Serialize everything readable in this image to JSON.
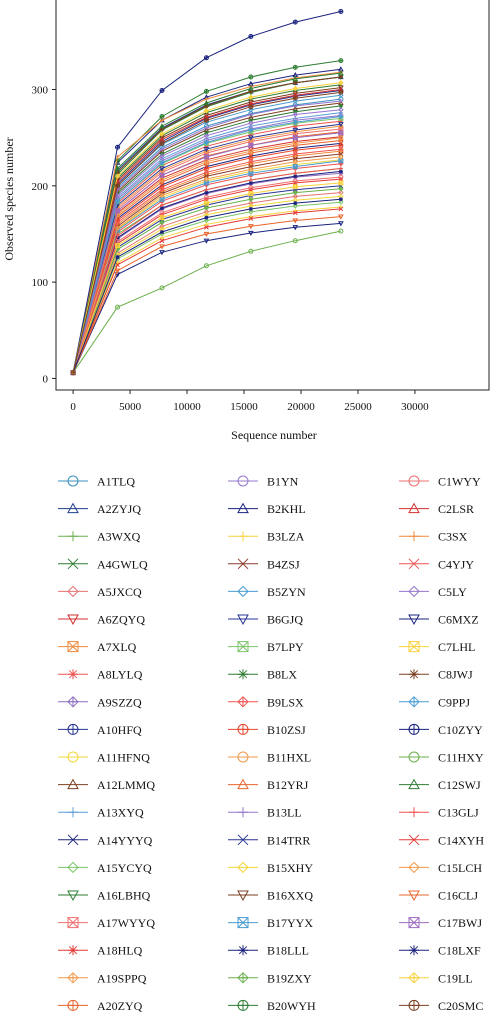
{
  "chart_data": {
    "type": "line",
    "title": "",
    "xlabel": "Sequence number",
    "ylabel": "Observed species number",
    "xlim": [
      -1500,
      36500
    ],
    "ylim": [
      -12,
      395
    ],
    "xticks": [
      0,
      5000,
      10000,
      15000,
      20000,
      25000,
      30000
    ],
    "yticks": [
      0,
      100,
      200,
      300
    ],
    "x": [
      0,
      3900,
      7800,
      11700,
      15600,
      19500,
      23500
    ],
    "legend_placement": "below",
    "legend_columns": 3,
    "series": [
      {
        "name": "A1TLQ",
        "color": "#3a8fc0",
        "marker": "circle",
        "values": [
          6,
          198,
          240,
          262,
          275,
          284,
          290
        ]
      },
      {
        "name": "A2ZYJQ",
        "color": "#1f3f8c",
        "marker": "triangle",
        "values": [
          6,
          216,
          260,
          284,
          298,
          307,
          313
        ]
      },
      {
        "name": "A3WXQ",
        "color": "#6ab04c",
        "marker": "plus",
        "values": [
          6,
          150,
          180,
          196,
          206,
          213,
          218
        ]
      },
      {
        "name": "A4GWLQ",
        "color": "#2e7d32",
        "marker": "x",
        "values": [
          6,
          208,
          252,
          276,
          290,
          299,
          305
        ]
      },
      {
        "name": "A5JXCQ",
        "color": "#e57373",
        "marker": "diamond",
        "values": [
          6,
          130,
          158,
          173,
          182,
          189,
          193
        ]
      },
      {
        "name": "A6ZQYQ",
        "color": "#d32f2f",
        "marker": "triangle-down",
        "values": [
          6,
          172,
          208,
          227,
          238,
          246,
          251
        ]
      },
      {
        "name": "A7XLQ",
        "color": "#f08a3c",
        "marker": "square-x",
        "values": [
          6,
          160,
          194,
          212,
          223,
          231,
          236
        ]
      },
      {
        "name": "A8LYLQ",
        "color": "#ef5350",
        "marker": "asterisk",
        "values": [
          6,
          182,
          221,
          241,
          253,
          262,
          267
        ]
      },
      {
        "name": "A9SZZQ",
        "color": "#8e6bbf",
        "marker": "diamond-plus",
        "values": [
          6,
          145,
          176,
          192,
          202,
          209,
          213
        ]
      },
      {
        "name": "A10HFQ",
        "color": "#283593",
        "marker": "circle-plus",
        "values": [
          6,
          202,
          246,
          270,
          284,
          293,
          299
        ]
      },
      {
        "name": "A11HFNQ",
        "color": "#f2d63c",
        "marker": "circle",
        "values": [
          6,
          155,
          188,
          205,
          215,
          222,
          227
        ]
      },
      {
        "name": "A12LMMQ",
        "color": "#7b3f20",
        "marker": "triangle",
        "values": [
          6,
          194,
          236,
          258,
          271,
          280,
          286
        ]
      },
      {
        "name": "A13XYQ",
        "color": "#5d9cd6",
        "marker": "plus",
        "values": [
          6,
          188,
          228,
          249,
          262,
          270,
          276
        ]
      },
      {
        "name": "A14YYYQ",
        "color": "#1a237e",
        "marker": "x",
        "values": [
          6,
          166,
          201,
          220,
          231,
          239,
          244
        ]
      },
      {
        "name": "A15YCYQ",
        "color": "#7cc46a",
        "marker": "diamond",
        "values": [
          6,
          124,
          150,
          164,
          173,
          179,
          183
        ]
      },
      {
        "name": "A16LBHQ",
        "color": "#2e7d32",
        "marker": "triangle-down",
        "values": [
          6,
          212,
          258,
          282,
          297,
          307,
          313
        ]
      },
      {
        "name": "A17WYYQ",
        "color": "#ef6f6f",
        "marker": "square-x",
        "values": [
          6,
          176,
          214,
          234,
          246,
          254,
          259
        ]
      },
      {
        "name": "A18HLQ",
        "color": "#e53935",
        "marker": "asterisk",
        "values": [
          6,
          140,
          170,
          186,
          196,
          203,
          207
        ]
      },
      {
        "name": "A19SPPQ",
        "color": "#f2994a",
        "marker": "diamond-plus",
        "values": [
          6,
          178,
          216,
          236,
          248,
          256,
          262
        ]
      },
      {
        "name": "A20ZYQ",
        "color": "#e8642c",
        "marker": "circle-plus",
        "values": [
          6,
          168,
          204,
          223,
          234,
          242,
          247
        ]
      },
      {
        "name": "B1YN",
        "color": "#9575cd",
        "marker": "circle",
        "values": [
          6,
          186,
          226,
          247,
          259,
          268,
          273
        ]
      },
      {
        "name": "B2KHL",
        "color": "#1a237e",
        "marker": "triangle",
        "values": [
          6,
          224,
          268,
          292,
          306,
          315,
          321
        ]
      },
      {
        "name": "B3LZA",
        "color": "#f7d23c",
        "marker": "plus",
        "values": [
          6,
          120,
          146,
          160,
          168,
          174,
          178
        ]
      },
      {
        "name": "B4ZSJ",
        "color": "#8b3a2a",
        "marker": "x",
        "values": [
          6,
          158,
          192,
          210,
          220,
          228,
          233
        ]
      },
      {
        "name": "B5ZYN",
        "color": "#4a9bd0",
        "marker": "diamond",
        "values": [
          6,
          200,
          243,
          266,
          279,
          288,
          294
        ]
      },
      {
        "name": "B6GJQ",
        "color": "#283593",
        "marker": "triangle-down",
        "values": [
          6,
          180,
          218,
          238,
          250,
          258,
          264
        ]
      },
      {
        "name": "B7LPY",
        "color": "#7cc46a",
        "marker": "square-x",
        "values": [
          6,
          184,
          223,
          244,
          256,
          265,
          270
        ]
      },
      {
        "name": "B8LX",
        "color": "#2e7d32",
        "marker": "asterisk",
        "values": [
          6,
          192,
          233,
          255,
          268,
          277,
          283
        ]
      },
      {
        "name": "B9LSX",
        "color": "#ef5350",
        "marker": "diamond-plus",
        "values": [
          6,
          152,
          184,
          201,
          211,
          218,
          223
        ]
      },
      {
        "name": "B10ZSJ",
        "color": "#e8452c",
        "marker": "circle-plus",
        "values": [
          6,
          164,
          199,
          218,
          229,
          237,
          242
        ]
      },
      {
        "name": "B11HXL",
        "color": "#f2994a",
        "marker": "circle",
        "values": [
          6,
          170,
          206,
          225,
          236,
          244,
          250
        ]
      },
      {
        "name": "B12YRJ",
        "color": "#e8642c",
        "marker": "triangle",
        "values": [
          6,
          174,
          211,
          231,
          242,
          251,
          256
        ]
      },
      {
        "name": "B13LL",
        "color": "#9575cd",
        "marker": "plus",
        "values": [
          6,
          196,
          238,
          260,
          274,
          283,
          288
        ]
      },
      {
        "name": "B14TRR",
        "color": "#283593",
        "marker": "x",
        "values": [
          6,
          136,
          165,
          180,
          190,
          196,
          200
        ]
      },
      {
        "name": "B15XHY",
        "color": "#f2d63c",
        "marker": "diamond",
        "values": [
          6,
          128,
          155,
          170,
          179,
          185,
          189
        ]
      },
      {
        "name": "B16XXQ",
        "color": "#7b3f20",
        "marker": "triangle-down",
        "values": [
          6,
          206,
          250,
          273,
          287,
          296,
          302
        ]
      },
      {
        "name": "B17YYX",
        "color": "#4a9bd0",
        "marker": "square-x",
        "values": [
          6,
          154,
          186,
          203,
          213,
          220,
          226
        ]
      },
      {
        "name": "B18LLL",
        "color": "#1a237e",
        "marker": "asterisk",
        "values": [
          6,
          146,
          177,
          193,
          203,
          210,
          215
        ]
      },
      {
        "name": "B19ZXY",
        "color": "#6ab04c",
        "marker": "diamond-plus",
        "values": [
          6,
          134,
          162,
          177,
          186,
          193,
          197
        ]
      },
      {
        "name": "B20WYH",
        "color": "#2e7d32",
        "marker": "circle-plus",
        "values": [
          6,
          226,
          272,
          298,
          313,
          323,
          330
        ]
      },
      {
        "name": "C1WYY",
        "color": "#ef6f6f",
        "marker": "circle",
        "values": [
          6,
          142,
          172,
          188,
          198,
          205,
          209
        ]
      },
      {
        "name": "C2LSR",
        "color": "#d32f2f",
        "marker": "triangle",
        "values": [
          6,
          204,
          248,
          271,
          285,
          294,
          300
        ]
      },
      {
        "name": "C3SX",
        "color": "#f08a3c",
        "marker": "plus",
        "values": [
          6,
          230,
          268,
          290,
          303,
          312,
          318
        ]
      },
      {
        "name": "C4YJY",
        "color": "#ef5350",
        "marker": "x",
        "values": [
          6,
          162,
          196,
          214,
          225,
          233,
          238
        ]
      },
      {
        "name": "C5LY",
        "color": "#9575cd",
        "marker": "diamond",
        "values": [
          6,
          190,
          231,
          252,
          265,
          274,
          279
        ]
      },
      {
        "name": "C6MXZ",
        "color": "#1a237e",
        "marker": "triangle-down",
        "values": [
          6,
          108,
          131,
          143,
          151,
          157,
          161
        ]
      },
      {
        "name": "C7LHL",
        "color": "#f7d23c",
        "marker": "square-x",
        "values": [
          6,
          138,
          167,
          182,
          192,
          199,
          203
        ]
      },
      {
        "name": "C8JWJ",
        "color": "#7b3f20",
        "marker": "asterisk",
        "values": [
          6,
          214,
          259,
          283,
          298,
          307,
          313
        ]
      },
      {
        "name": "C9PPJ",
        "color": "#4a9bd0",
        "marker": "diamond-plus",
        "values": [
          6,
          184,
          224,
          245,
          258,
          266,
          272
        ]
      },
      {
        "name": "C10ZYY",
        "color": "#1a237e",
        "marker": "circle-plus",
        "values": [
          6,
          240,
          299,
          333,
          355,
          370,
          381
        ]
      },
      {
        "name": "C11HXY",
        "color": "#6ab04c",
        "marker": "circle",
        "values": [
          6,
          74,
          94,
          117,
          132,
          143,
          153
        ]
      },
      {
        "name": "C12SWJ",
        "color": "#2e7d32",
        "marker": "triangle",
        "values": [
          6,
          218,
          262,
          286,
          301,
          311,
          317
        ]
      },
      {
        "name": "C13GLJ",
        "color": "#ef5350",
        "marker": "plus",
        "values": [
          6,
          148,
          180,
          196,
          206,
          213,
          218
        ]
      },
      {
        "name": "C14XYH",
        "color": "#e53935",
        "marker": "x",
        "values": [
          6,
          118,
          143,
          157,
          166,
          172,
          176
        ]
      },
      {
        "name": "C15LCH",
        "color": "#f2994a",
        "marker": "diamond",
        "values": [
          6,
          156,
          190,
          207,
          217,
          225,
          230
        ]
      },
      {
        "name": "C16CLJ",
        "color": "#e8642c",
        "marker": "triangle-down",
        "values": [
          6,
          112,
          137,
          150,
          158,
          164,
          168
        ]
      },
      {
        "name": "C17BWJ",
        "color": "#9c6bc0",
        "marker": "square-x",
        "values": [
          6,
          174,
          211,
          230,
          242,
          250,
          255
        ]
      },
      {
        "name": "C18LXF",
        "color": "#1a237e",
        "marker": "asterisk",
        "values": [
          6,
          126,
          152,
          167,
          176,
          182,
          186
        ]
      },
      {
        "name": "C19LL",
        "color": "#f7d23c",
        "marker": "diamond-plus",
        "values": [
          6,
          210,
          254,
          278,
          292,
          301,
          307
        ]
      },
      {
        "name": "C20SMC",
        "color": "#7b3f20",
        "marker": "circle-plus",
        "values": [
          6,
          200,
          244,
          268,
          282,
          291,
          297
        ]
      }
    ]
  }
}
